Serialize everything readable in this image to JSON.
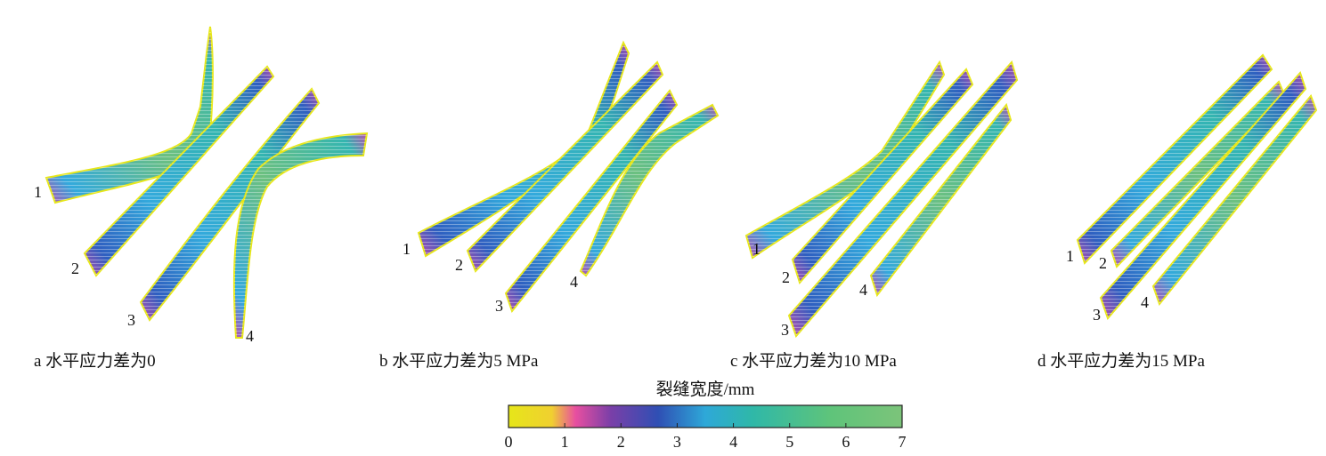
{
  "panels": [
    {
      "caption": "a 水平应力差为0",
      "fractures": [
        {
          "label": "1"
        },
        {
          "label": "2"
        },
        {
          "label": "3"
        },
        {
          "label": "4"
        }
      ]
    },
    {
      "caption": "b 水平应力差为5 MPa",
      "fractures": [
        {
          "label": "1"
        },
        {
          "label": "2"
        },
        {
          "label": "3"
        },
        {
          "label": "4"
        }
      ]
    },
    {
      "caption": "c 水平应力差为10 MPa",
      "fractures": [
        {
          "label": "1"
        },
        {
          "label": "2"
        },
        {
          "label": "3"
        },
        {
          "label": "4"
        }
      ]
    },
    {
      "caption": "d 水平应力差为15 MPa",
      "fractures": [
        {
          "label": "1"
        },
        {
          "label": "2"
        },
        {
          "label": "3"
        },
        {
          "label": "4"
        }
      ]
    }
  ],
  "colorbar": {
    "title": "裂缝宽度/mm",
    "min": 0,
    "max": 7,
    "ticks": [
      "0",
      "1",
      "2",
      "3",
      "4",
      "5",
      "6",
      "7"
    ],
    "stops": [
      "#e6e619",
      "#e84fa0",
      "#7a3fa8",
      "#2f4fb4",
      "#2ea8d8",
      "#2fb8a8",
      "#5fc47a",
      "#7cc47a"
    ]
  },
  "colors": {
    "yellow": "#e6e619",
    "magenta": "#b94fb0",
    "purple": "#6a3aa0",
    "blue": "#2f5fc0",
    "cyan": "#33a9dc",
    "teal": "#34b5b0",
    "green": "#6cc080"
  }
}
